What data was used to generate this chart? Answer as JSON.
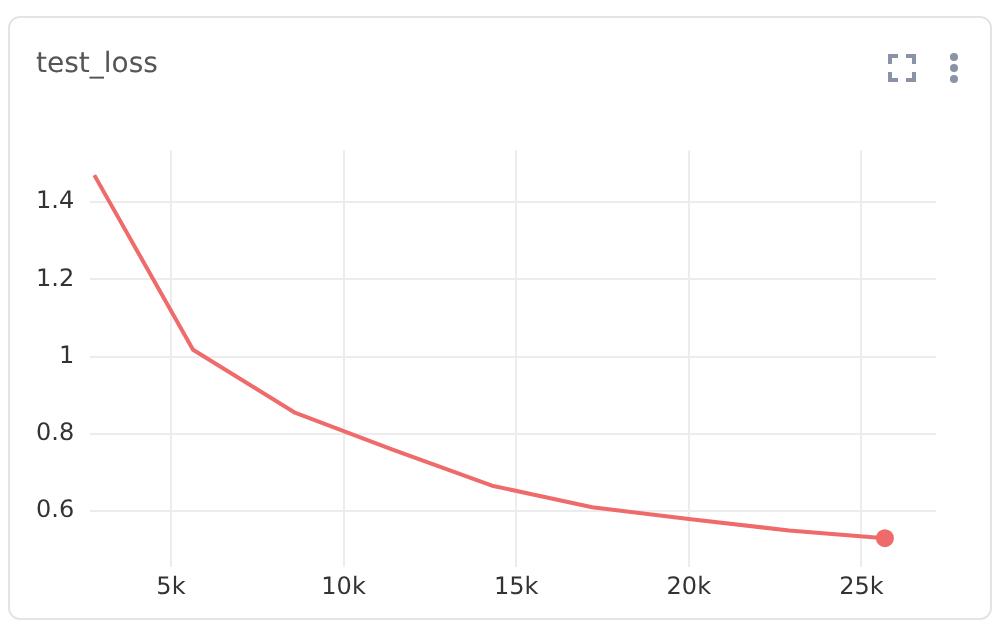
{
  "chart_data": {
    "type": "line",
    "title": "test_loss",
    "x": [
      2780,
      5640,
      8570,
      11400,
      14300,
      17200,
      20000,
      22900,
      25680
    ],
    "series": [
      {
        "color": "#ef6b6b",
        "values": [
          1.47,
          1.018,
          0.856,
          0.76,
          0.666,
          0.61,
          0.58,
          0.55,
          0.53
        ]
      }
    ],
    "xlim": [
      2660,
      27160
    ],
    "xticks": [
      {
        "value": 5000,
        "label": "5k"
      },
      {
        "value": 10000,
        "label": "10k"
      },
      {
        "value": 15000,
        "label": "15k"
      },
      {
        "value": 20000,
        "label": "20k"
      },
      {
        "value": 25000,
        "label": "25k"
      }
    ],
    "ylim": [
      0.455,
      1.534
    ],
    "yticks": [
      0.6,
      0.8,
      1,
      1.2,
      1.4
    ],
    "grid": true,
    "legend": false
  }
}
